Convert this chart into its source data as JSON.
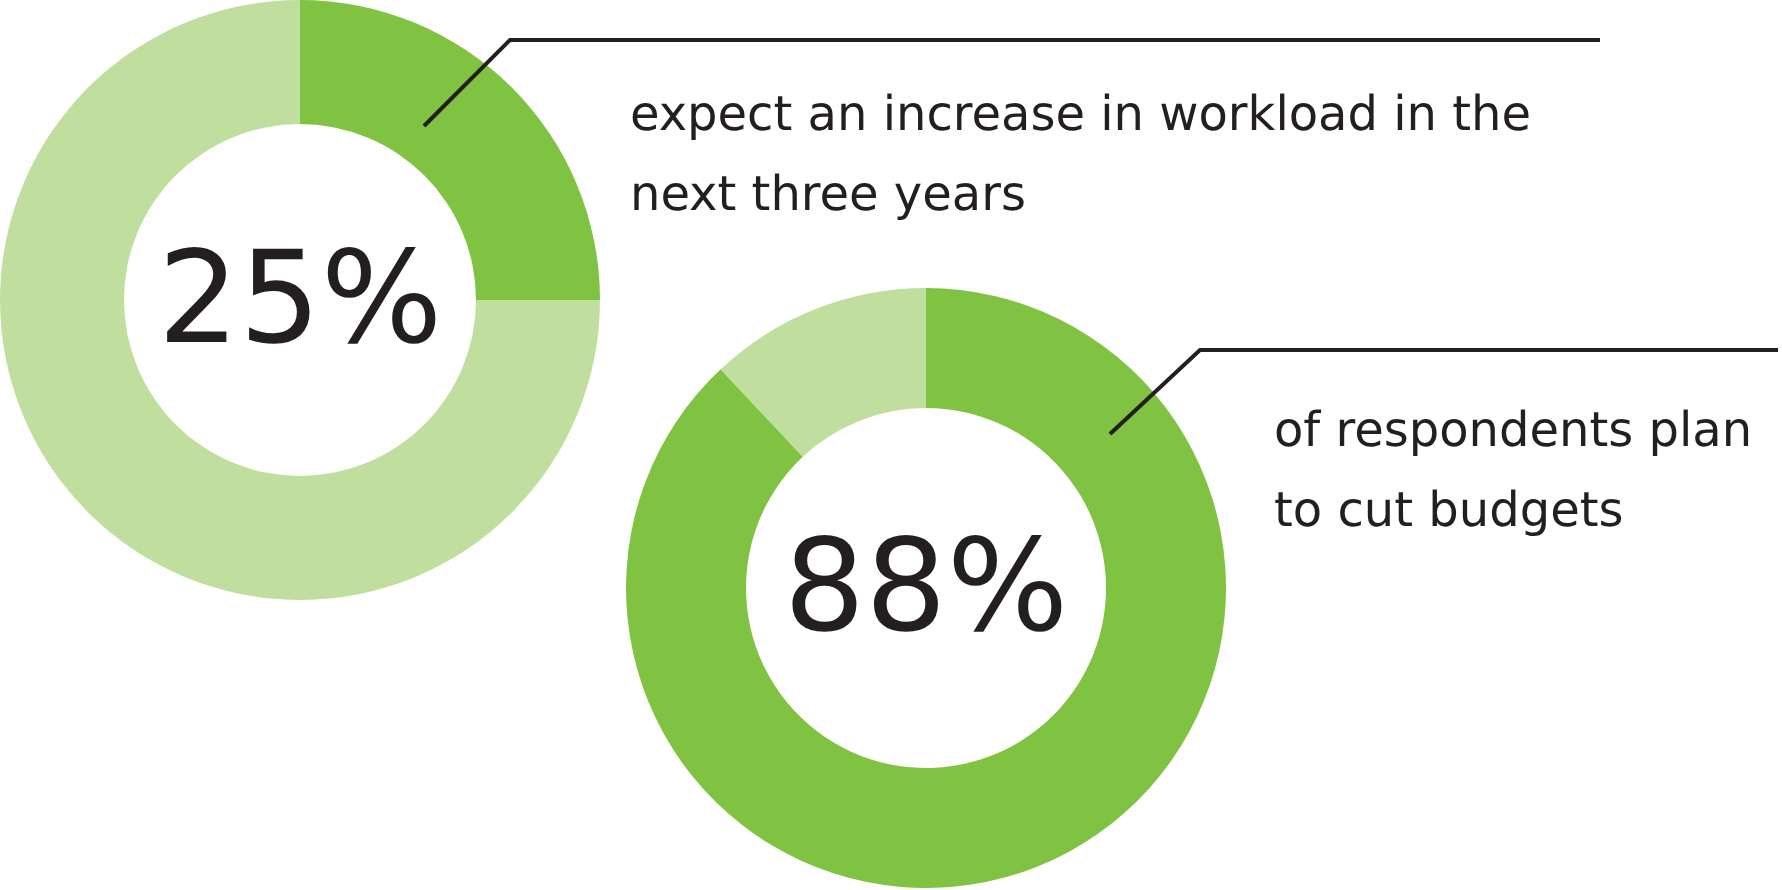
{
  "chart_data": [
    {
      "type": "donut",
      "categories": [
        null,
        null
      ],
      "values": [
        25,
        75
      ],
      "colors": [
        "#80c342",
        "#c0df9e"
      ],
      "value_labels": [
        "25%",
        null
      ],
      "annotations": [
        "expect an increase in workload in the next three years"
      ]
    },
    {
      "type": "donut",
      "categories": [
        null,
        null
      ],
      "values": [
        88,
        12
      ],
      "colors": [
        "#80c342",
        "#c0df9e"
      ],
      "value_labels": [
        "88%",
        null
      ],
      "annotations": [
        "of respondents plan to cut budgets"
      ]
    }
  ]
}
